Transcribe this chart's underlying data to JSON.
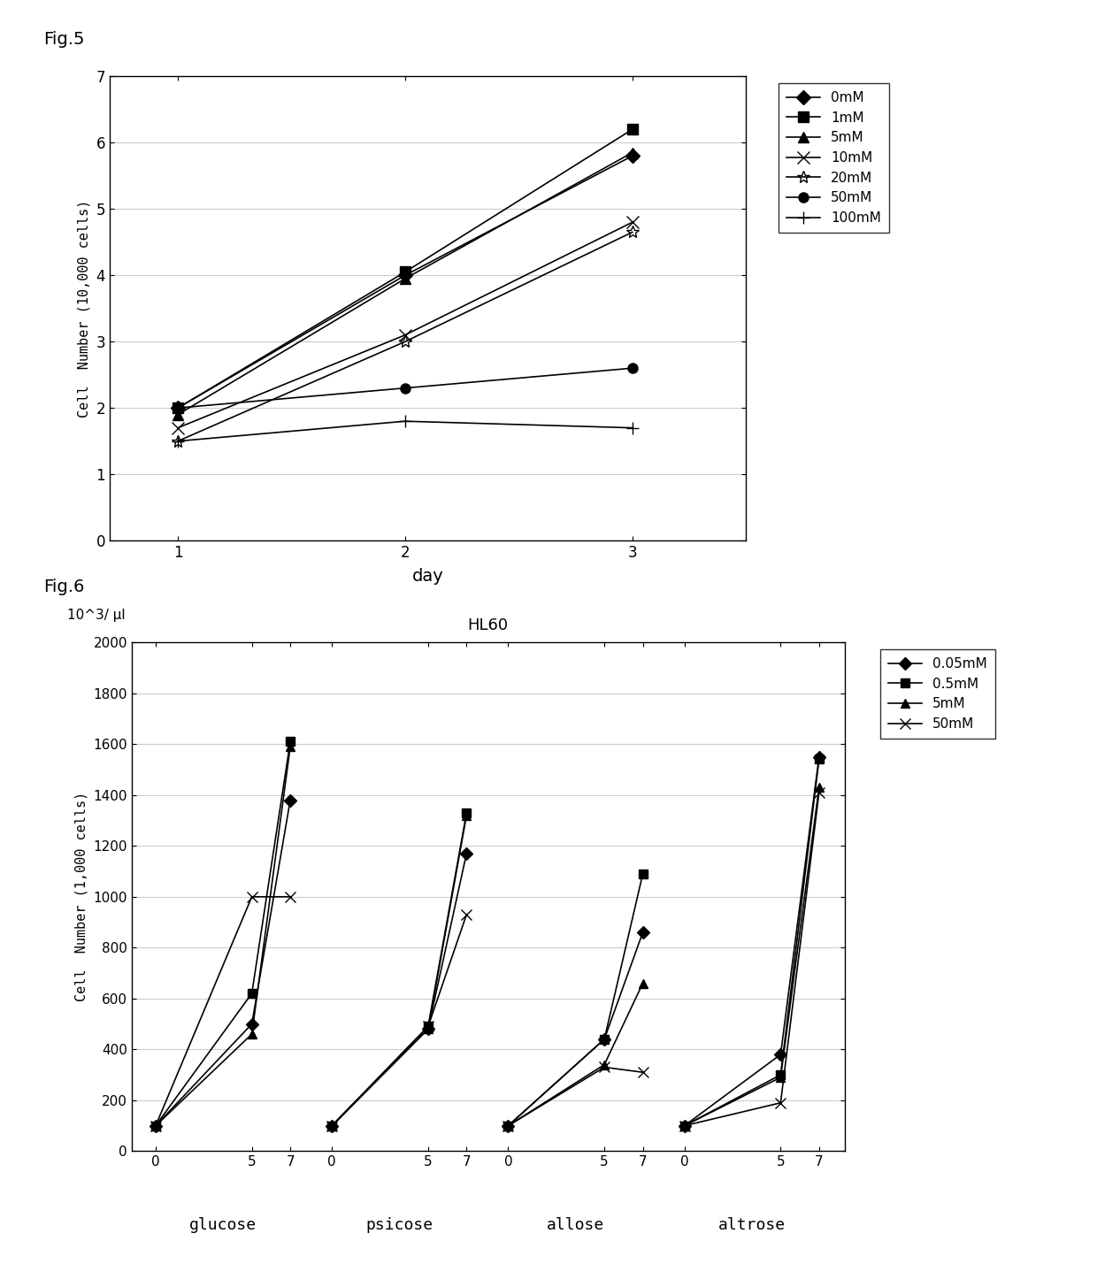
{
  "fig5": {
    "xlabel": "day",
    "ylabel": "Cell l Number (10,000 cel ls)",
    "xlim": [
      0.7,
      3.5
    ],
    "ylim": [
      0,
      7
    ],
    "yticks": [
      0,
      1,
      2,
      3,
      4,
      5,
      6,
      7
    ],
    "xticks": [
      1,
      2,
      3
    ],
    "series": [
      {
        "label": "0mM",
        "marker": "D",
        "days": [
          1,
          2,
          3
        ],
        "values": [
          2.0,
          4.0,
          5.8
        ]
      },
      {
        "label": "1mM",
        "marker": "s",
        "days": [
          1,
          2,
          3
        ],
        "values": [
          2.0,
          4.05,
          6.2
        ]
      },
      {
        "label": "5mM",
        "marker": "^",
        "days": [
          1,
          2,
          3
        ],
        "values": [
          1.9,
          3.95,
          5.85
        ]
      },
      {
        "label": "10mM",
        "marker": "x",
        "days": [
          1,
          2,
          3
        ],
        "values": [
          1.7,
          3.1,
          4.8
        ]
      },
      {
        "label": "20mM",
        "marker": "*",
        "days": [
          1,
          2,
          3
        ],
        "values": [
          1.5,
          3.0,
          4.65
        ]
      },
      {
        "label": "50mM",
        "marker": "o",
        "days": [
          1,
          2,
          3
        ],
        "values": [
          2.0,
          2.3,
          2.6
        ]
      },
      {
        "label": "100mM",
        "marker": "+",
        "days": [
          1,
          2,
          3
        ],
        "values": [
          1.5,
          1.8,
          1.7
        ]
      }
    ]
  },
  "fig6": {
    "chart_title": "HL60",
    "unit_label": "10^3/μl",
    "ylabel": "Cell l Number (1,000 cel ls)",
    "ylim": [
      0,
      2000
    ],
    "yticks": [
      0,
      200,
      400,
      600,
      800,
      1000,
      1200,
      1400,
      1600,
      1800,
      2000
    ],
    "groups": [
      "glucose",
      "psicose",
      "allose",
      "altrose"
    ],
    "xvals": [
      0,
      5,
      7
    ],
    "group_offsets": [
      0,
      11,
      22,
      33
    ],
    "group_scale": 1.2,
    "xlim": [
      -1.5,
      43
    ],
    "series": [
      {
        "label": "0.05mM",
        "marker": "D",
        "data": {
          "glucose": [
            100,
            500,
            1380
          ],
          "psicose": [
            100,
            480,
            1170
          ],
          "allose": [
            100,
            440,
            860
          ],
          "altrose": [
            100,
            380,
            1550
          ]
        }
      },
      {
        "label": "0.5mM",
        "marker": "s",
        "data": {
          "glucose": [
            100,
            620,
            1610
          ],
          "psicose": [
            100,
            490,
            1330
          ],
          "allose": [
            100,
            440,
            1090
          ],
          "altrose": [
            100,
            300,
            1540
          ]
        }
      },
      {
        "label": "5mM",
        "marker": "^",
        "data": {
          "glucose": [
            100,
            460,
            1590
          ],
          "psicose": [
            100,
            480,
            1320
          ],
          "allose": [
            100,
            340,
            660
          ],
          "altrose": [
            100,
            290,
            1430
          ]
        }
      },
      {
        "label": "50mM",
        "marker": "x",
        "data": {
          "glucose": [
            100,
            1000,
            1000
          ],
          "psicose": [
            100,
            490,
            930
          ],
          "allose": [
            100,
            330,
            310
          ],
          "altrose": [
            100,
            190,
            1410
          ]
        }
      }
    ]
  }
}
